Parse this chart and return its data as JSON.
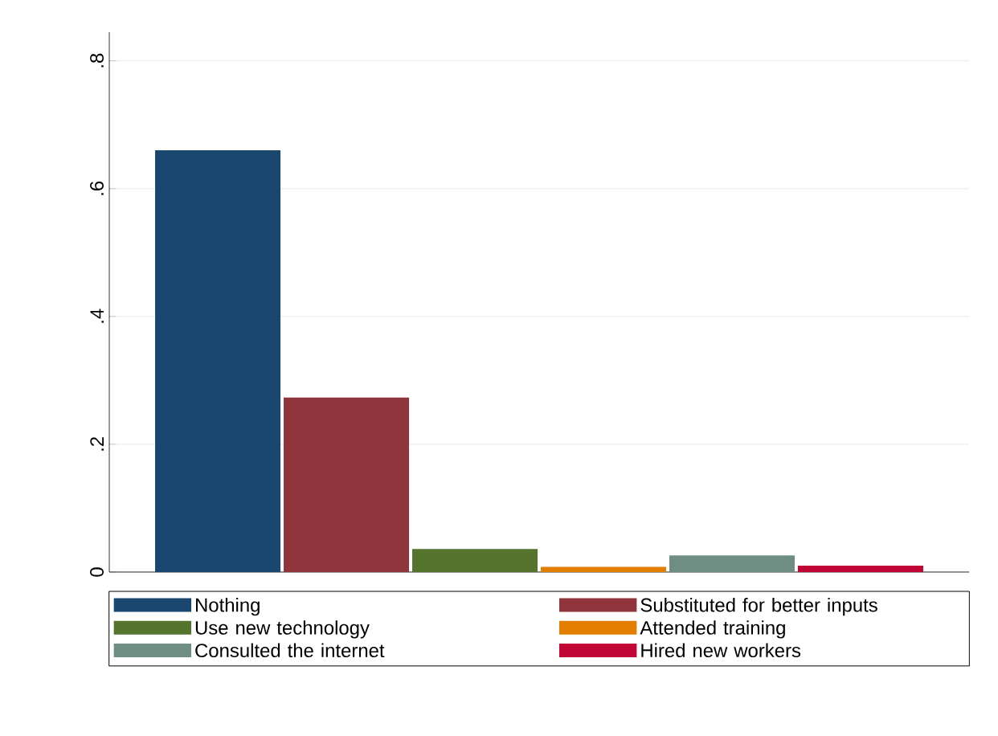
{
  "chart_data": {
    "type": "bar",
    "categories": [
      null
    ],
    "series": [
      {
        "name": "Nothing",
        "color": "#1a476f",
        "values": [
          0.66
        ]
      },
      {
        "name": "Substituted for better inputs",
        "color": "#90353b",
        "values": [
          0.273
        ]
      },
      {
        "name": "Use new technology",
        "color": "#55752f",
        "values": [
          0.036
        ]
      },
      {
        "name": "Attended training",
        "color": "#e37e00",
        "values": [
          0.008
        ]
      },
      {
        "name": "Consulted the internet",
        "color": "#6e8e84",
        "values": [
          0.026
        ]
      },
      {
        "name": "Hired new workers",
        "color": "#c10534",
        "values": [
          0.01
        ]
      }
    ],
    "ylim": [
      0,
      0.845
    ],
    "yticks": [
      0,
      {
        "value": 0.2,
        "label": ".2"
      },
      {
        "value": 0.4,
        "label": ".4"
      },
      {
        "value": 0.6,
        "label": ".6"
      },
      {
        "value": 0.8,
        "label": ".8"
      }
    ],
    "grid": true,
    "legend": "bottom"
  }
}
